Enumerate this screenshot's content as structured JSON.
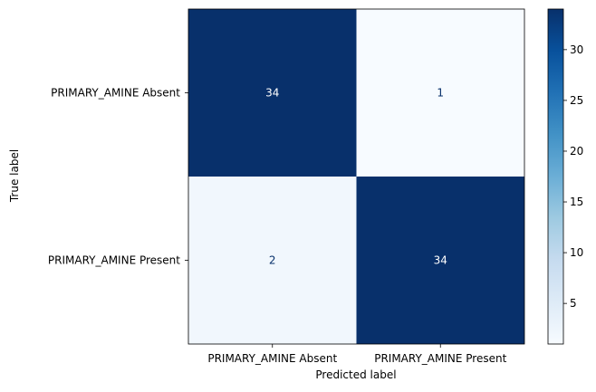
{
  "chart_data": {
    "type": "heatmap",
    "title": "",
    "xlabel": "Predicted label",
    "ylabel": "True label",
    "x_categories": [
      "PRIMARY_AMINE Absent",
      "PRIMARY_AMINE Present"
    ],
    "y_categories": [
      "PRIMARY_AMINE Absent",
      "PRIMARY_AMINE Present"
    ],
    "values": [
      [
        34,
        1
      ],
      [
        2,
        34
      ]
    ],
    "colormap": "Blues",
    "colorbar": {
      "ticks": [
        5,
        10,
        15,
        20,
        25,
        30
      ],
      "vmin": 1,
      "vmax": 34
    },
    "text_colors": {
      "dark_cell": "#ffffff",
      "light_cell": "#08306b"
    },
    "grid": false
  }
}
